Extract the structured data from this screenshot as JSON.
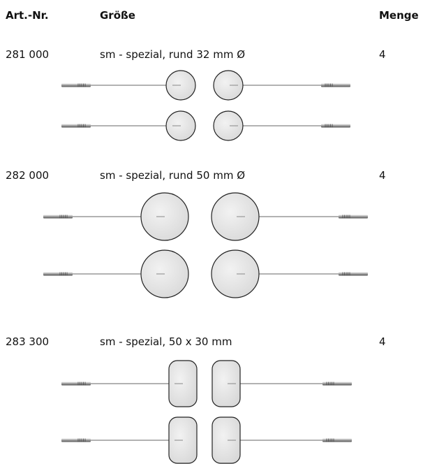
{
  "header": {
    "art_nr": "Art.-Nr.",
    "size": "Größe",
    "quantity": "Menge"
  },
  "rows": [
    {
      "art_nr": "281 000",
      "size": "sm - spezial, rund 32 mm Ø",
      "quantity": "4"
    },
    {
      "art_nr": "282 000",
      "size": "sm - spezial, rund 50 mm Ø",
      "quantity": "4"
    },
    {
      "art_nr": "283 300",
      "size": "sm - spezial, 50 x 30 mm",
      "quantity": "4"
    }
  ]
}
